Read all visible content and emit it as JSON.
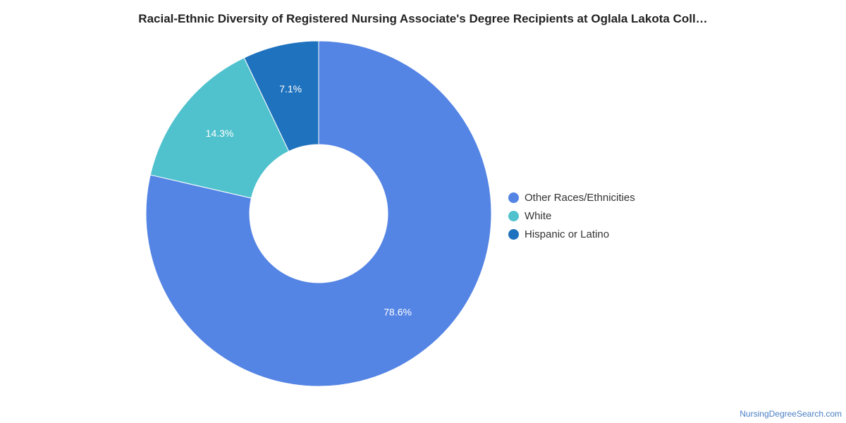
{
  "chart_data": {
    "type": "pie",
    "title": "Racial-Ethnic Diversity of Registered Nursing Associate's Degree Recipients at Oglala Lakota Coll…",
    "donut": true,
    "legend_position": "right",
    "slices": [
      {
        "label": "Other Races/Ethnicities",
        "value": 78.6,
        "display": "78.6%",
        "color": "#5484e4"
      },
      {
        "label": "White",
        "value": 14.3,
        "display": "14.3%",
        "color": "#50c2cd"
      },
      {
        "label": "Hispanic or Latino",
        "value": 7.1,
        "display": "7.1%",
        "color": "#1f72bd"
      }
    ]
  },
  "source": "NursingDegreeSearch.com"
}
